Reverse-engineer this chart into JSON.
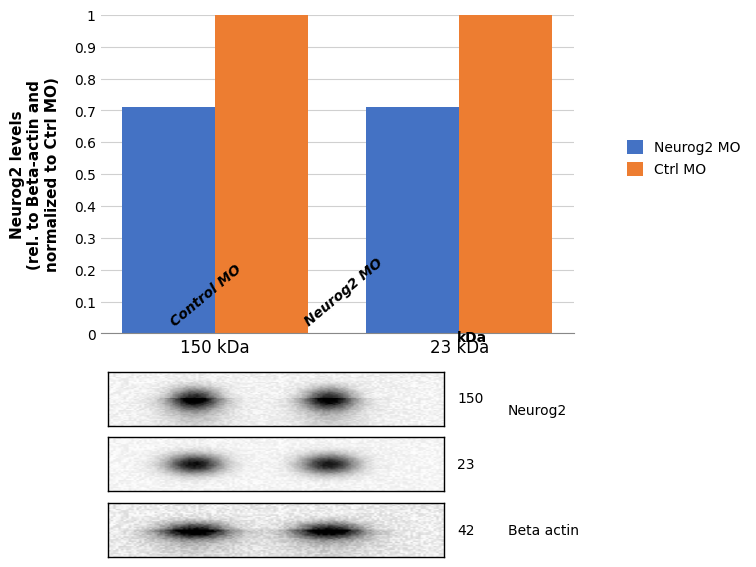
{
  "bar_categories": [
    "150 kDa",
    "23 kDa"
  ],
  "neurog2_values": [
    0.71,
    0.71
  ],
  "ctrl_values": [
    1.0,
    1.0
  ],
  "neurog2_color": "#4472C4",
  "ctrl_color": "#ED7D31",
  "ylabel_line1": "Neurog2 levels",
  "ylabel_line2": "(rel. to Beta-actin and",
  "ylabel_line3": "normalized to Ctrl MO)",
  "ylim": [
    0,
    1.0
  ],
  "yticks": [
    0,
    0.1,
    0.2,
    0.3,
    0.4,
    0.5,
    0.6,
    0.7,
    0.8,
    0.9,
    1
  ],
  "ytick_labels": [
    "0",
    "0.1",
    "0.2",
    "0.3",
    "0.4",
    "0.5",
    "0.6",
    "0.7",
    "0.8",
    "0.9",
    "1"
  ],
  "legend_neurog2": "Neurog2 MO",
  "legend_ctrl": "Ctrl MO",
  "bar_width": 0.38,
  "background_color": "#ffffff",
  "wb_col1_label": "Control MO",
  "wb_col2_label": "Neurog2 MO",
  "wb_kda_label": "kDa",
  "wb_150": "150",
  "wb_23": "23",
  "wb_42": "42",
  "wb_neurog2": "Neurog2",
  "wb_beta_actin": "Beta actin",
  "grid_color": "#d0d0d0",
  "spine_color": "#888888"
}
